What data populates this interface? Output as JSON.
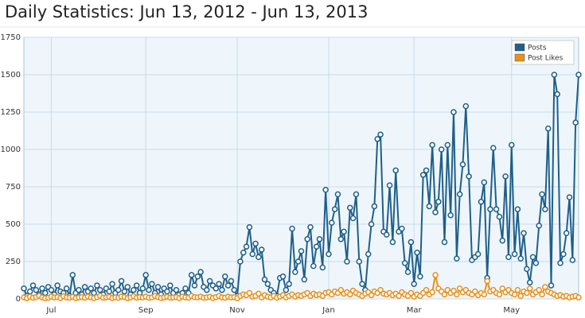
{
  "chart_data": {
    "type": "line",
    "title": "Daily Statistics: Jun 13, 2012 - Jun 13, 2013",
    "categories": [
      null,
      null,
      null,
      null,
      null,
      null,
      null,
      null,
      null,
      "Jul",
      null,
      null,
      null,
      null,
      null,
      null,
      null,
      null,
      null,
      null,
      null,
      null,
      null,
      null,
      null,
      null,
      null,
      null,
      null,
      null,
      null,
      null,
      null,
      null,
      null,
      null,
      null,
      null,
      null,
      null,
      "Sep",
      null,
      null,
      null,
      null,
      null,
      null,
      null,
      null,
      null,
      null,
      null,
      null,
      null,
      null,
      null,
      null,
      null,
      null,
      null,
      null,
      null,
      null,
      null,
      null,
      null,
      null,
      null,
      null,
      null,
      "Nov",
      null,
      null,
      null,
      null,
      null,
      null,
      null,
      null,
      null,
      null,
      null,
      null,
      null,
      null,
      null,
      null,
      null,
      null,
      null,
      null,
      null,
      null,
      null,
      null,
      null,
      null,
      null,
      null,
      null,
      "Jan",
      null,
      null,
      null,
      null,
      null,
      null,
      null,
      null,
      null,
      null,
      null,
      null,
      null,
      null,
      null,
      null,
      null,
      null,
      null,
      null,
      null,
      null,
      null,
      null,
      null,
      null,
      null,
      "Mar",
      null,
      null,
      null,
      null,
      null,
      null,
      null,
      null,
      null,
      null,
      null,
      null,
      null,
      null,
      null,
      null,
      null,
      null,
      null,
      null,
      null,
      null,
      null,
      null,
      null,
      null,
      null,
      null,
      null,
      null,
      null,
      "May",
      null,
      null,
      null,
      null,
      null,
      null,
      null,
      null,
      null,
      null,
      null,
      null,
      null,
      null,
      null,
      null,
      null,
      null,
      null,
      null,
      null,
      null
    ],
    "series": [
      {
        "name": "Posts",
        "color": "#1f5f8b",
        "values": [
          70,
          20,
          50,
          90,
          60,
          30,
          70,
          40,
          80,
          60,
          30,
          90,
          50,
          40,
          70,
          20,
          160,
          40,
          60,
          30,
          80,
          50,
          70,
          40,
          90,
          60,
          30,
          70,
          50,
          100,
          40,
          60,
          120,
          50,
          80,
          30,
          60,
          90,
          40,
          70,
          160,
          60,
          100,
          40,
          80,
          30,
          70,
          50,
          90,
          40,
          60,
          30,
          40,
          70,
          40,
          160,
          90,
          150,
          180,
          80,
          60,
          120,
          90,
          70,
          100,
          60,
          150,
          90,
          120,
          60,
          20,
          250,
          310,
          350,
          480,
          300,
          370,
          280,
          330,
          130,
          100,
          60,
          40,
          20,
          140,
          150,
          60,
          100,
          470,
          180,
          250,
          320,
          130,
          400,
          480,
          220,
          350,
          400,
          210,
          730,
          300,
          510,
          600,
          700,
          400,
          450,
          250,
          610,
          540,
          700,
          250,
          100,
          60,
          300,
          500,
          620,
          1070,
          1100,
          450,
          430,
          760,
          380,
          860,
          450,
          470,
          240,
          180,
          380,
          100,
          310,
          150,
          830,
          860,
          620,
          1030,
          580,
          650,
          1000,
          380,
          1030,
          560,
          1250,
          270,
          700,
          900,
          1290,
          820,
          260,
          280,
          300,
          650,
          780,
          140,
          600,
          1010,
          600,
          550,
          390,
          820,
          280,
          1030,
          300,
          600,
          270,
          440,
          200,
          110,
          280,
          240,
          490,
          700,
          600,
          1140,
          90,
          1500,
          1370,
          240,
          300,
          440,
          680,
          260,
          1180,
          1500
        ]
      },
      {
        "name": "Post Likes",
        "color": "#e8901a",
        "values": [
          10,
          5,
          15,
          8,
          12,
          20,
          10,
          5,
          8,
          15,
          10,
          12,
          6,
          18,
          10,
          8,
          14,
          5,
          10,
          12,
          8,
          15,
          10,
          6,
          12,
          20,
          8,
          10,
          14,
          6,
          10,
          8,
          15,
          12,
          5,
          10,
          18,
          8,
          12,
          10,
          15,
          8,
          10,
          20,
          12,
          6,
          10,
          14,
          8,
          10,
          12,
          6,
          15,
          10,
          8,
          20,
          12,
          10,
          15,
          8,
          10,
          14,
          6,
          12,
          20,
          10,
          8,
          15,
          10,
          12,
          5,
          20,
          30,
          25,
          40,
          15,
          20,
          35,
          10,
          25,
          15,
          10,
          20,
          8,
          15,
          25,
          10,
          20,
          30,
          15,
          25,
          20,
          30,
          40,
          20,
          35,
          25,
          30,
          20,
          40,
          45,
          30,
          50,
          40,
          60,
          35,
          45,
          30,
          55,
          40,
          30,
          20,
          35,
          45,
          25,
          50,
          40,
          60,
          35,
          30,
          40,
          25,
          35,
          20,
          45,
          30,
          20,
          40,
          15,
          30,
          20,
          40,
          60,
          30,
          45,
          160,
          70,
          50,
          30,
          60,
          40,
          55,
          30,
          70,
          45,
          60,
          40,
          30,
          50,
          25,
          40,
          30,
          120,
          50,
          60,
          40,
          30,
          70,
          45,
          60,
          40,
          30,
          60,
          20,
          50,
          40,
          70,
          30,
          45,
          60,
          30,
          80,
          50,
          40,
          30,
          20,
          25,
          15,
          20,
          10,
          15,
          20,
          10
        ]
      }
    ],
    "ylim": [
      0,
      1750
    ],
    "yticks": [
      0,
      250,
      500,
      750,
      1000,
      1250,
      1500,
      1750
    ],
    "grid": true,
    "legend": "top-right"
  }
}
